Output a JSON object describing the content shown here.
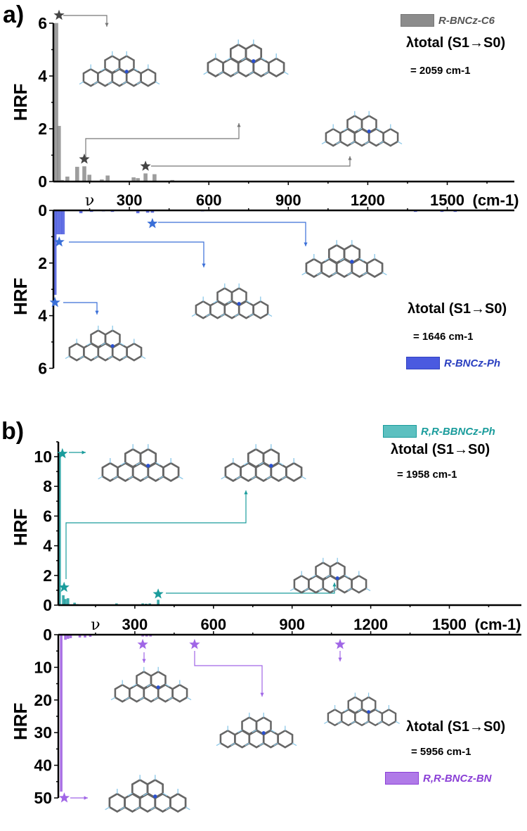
{
  "panel_labels": {
    "a": "a)",
    "b": "b)"
  },
  "chart_data": [
    {
      "id": "a_top",
      "type": "bar",
      "title": "",
      "ylabel": "HRF",
      "xlabel": "ν (cm-1)",
      "ylim": [
        0,
        6
      ],
      "xlim": [
        0,
        1750
      ],
      "y_ticks": [
        "0",
        "2",
        "4",
        "6"
      ],
      "x_ticks": [
        "300",
        "600",
        "900",
        "1200",
        "1500"
      ],
      "x_axis_symbol": "ν",
      "x_unit": "(cm-1)",
      "legend": "R-BNCz-C6",
      "lambda_label": "λtotal (S1→S0)",
      "lambda_value": "= 2059 cm-1",
      "color": "#8c8c8c",
      "star_color": "#444444",
      "x": [
        24,
        34,
        45,
        66,
        103,
        130,
        149,
        196,
        218,
        316,
        332,
        361,
        395,
        462,
        554
      ],
      "values": [
        6.0,
        2.1,
        0.05,
        0.18,
        0.55,
        0.57,
        0.25,
        0.07,
        0.22,
        0.15,
        0.12,
        0.3,
        0.27,
        0.05,
        0.02
      ],
      "stars": [
        [
          24,
          6.3
        ],
        [
          130,
          0.85
        ],
        [
          361,
          0.58
        ]
      ]
    },
    {
      "id": "a_bottom",
      "type": "bar",
      "inverted": true,
      "ylabel": "HRF",
      "ylim": [
        0,
        6
      ],
      "y_ticks": [
        "0",
        "2",
        "4",
        "6"
      ],
      "legend": "R-BNCz-Ph",
      "lambda_label": "λtotal (S1→S0)",
      "lambda_value": "= 1646 cm-1",
      "color": "#4a5ae0",
      "star_color": "#3a6fd8",
      "x": [
        19,
        29,
        40,
        50,
        117,
        157,
        202,
        236,
        332,
        369,
        387,
        576,
        1380,
        1480,
        1530
      ],
      "values": [
        3.2,
        0.9,
        0.9,
        0.9,
        0.1,
        0.05,
        0.03,
        0.05,
        0.1,
        0.08,
        0.08,
        0.03,
        0.05,
        0.05,
        0.05
      ],
      "stars": [
        [
          19,
          3.5
        ],
        [
          35,
          1.2
        ],
        [
          387,
          0.5
        ]
      ]
    },
    {
      "id": "b_top",
      "type": "bar",
      "ylabel": "HRF",
      "ylim": [
        0,
        11
      ],
      "xlim": [
        0,
        1750
      ],
      "y_ticks": [
        "0",
        "2",
        "4",
        "6",
        "8",
        "10"
      ],
      "x_ticks": [
        "300",
        "600",
        "900",
        "1200",
        "1500"
      ],
      "x_axis_symbol": "ν",
      "x_unit": "(cm-1)",
      "legend": "R,R-BBNCz-Ph",
      "lambda_label": "λtotal (S1→S0)",
      "lambda_value": "= 1958 cm-1",
      "color": "#1a9c9c",
      "star_color": "#1a9c9c",
      "x": [
        13,
        27,
        35,
        45,
        70,
        80,
        107,
        201,
        230,
        276,
        330,
        343,
        357,
        389
      ],
      "values": [
        10.2,
        0.65,
        0.4,
        0.45,
        0.15,
        0.05,
        0.03,
        0.03,
        0.1,
        0.03,
        0.1,
        0.08,
        0.1,
        0.35
      ],
      "stars": [
        [
          13,
          10.2
        ],
        [
          30,
          1.2
        ],
        [
          389,
          0.75
        ]
      ]
    },
    {
      "id": "b_bottom",
      "type": "bar",
      "inverted": true,
      "ylabel": "HRF",
      "ylim": [
        0,
        50
      ],
      "y_ticks": [
        "0",
        "10",
        "20",
        "30",
        "40",
        "50"
      ],
      "legend": "R,R-BNCz-BN",
      "lambda_label": "λtotal (S1→S0)",
      "lambda_value": "= 5956 cm-1",
      "color": "#9b59e0",
      "star_color": "#a066e6",
      "x": [
        19,
        35,
        45,
        55,
        90,
        110,
        130,
        330,
        345,
        360
      ],
      "values": [
        48,
        1.5,
        1.2,
        1.0,
        0.8,
        0.8,
        0.6,
        0.5,
        0.5,
        0.5
      ],
      "stars": [
        [
          330,
          3
        ],
        [
          528,
          3
        ],
        [
          1083,
          3
        ],
        [
          20,
          50
        ]
      ]
    }
  ]
}
